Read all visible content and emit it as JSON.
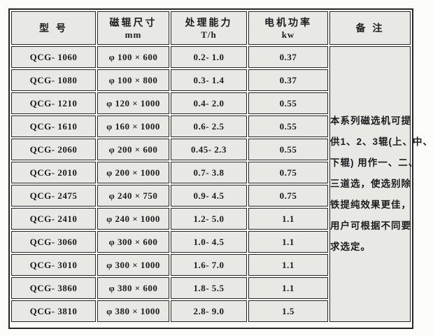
{
  "table": {
    "columns": {
      "model": {
        "label": "型  号",
        "unit": ""
      },
      "size": {
        "label": "磁辊尺寸",
        "unit": "mm"
      },
      "capacity": {
        "label": "处理能力",
        "unit": "T/h"
      },
      "power": {
        "label": "电机功率",
        "unit": "kw"
      },
      "remark": {
        "label": "备  注",
        "unit": ""
      }
    },
    "rows": [
      {
        "model": "QCG- 1060",
        "size": "φ 100 × 600",
        "capacity": "0.2- 1.0",
        "power": "0.37"
      },
      {
        "model": "QCG- 1080",
        "size": "φ 100 × 800",
        "capacity": "0.3- 1.4",
        "power": "0.37"
      },
      {
        "model": "QCG- 1210",
        "size": "φ 120 × 1000",
        "capacity": "0.4- 2.0",
        "power": "0.55"
      },
      {
        "model": "QCG- 1610",
        "size": "φ 160 × 1000",
        "capacity": "0.6- 2.5",
        "power": "0.55"
      },
      {
        "model": "QCG- 2060",
        "size": "φ 200 × 600",
        "capacity": "0.45- 2.3",
        "power": "0.55"
      },
      {
        "model": "QCG- 2010",
        "size": "φ 200 × 1000",
        "capacity": "0.7- 3.8",
        "power": "0.75"
      },
      {
        "model": "QCG- 2475",
        "size": "φ 240 × 750",
        "capacity": "0.9- 4.5",
        "power": "0.75"
      },
      {
        "model": "QCG- 2410",
        "size": "φ 240 × 1000",
        "capacity": "1.2- 5.0",
        "power": "1.1"
      },
      {
        "model": "QCG- 3060",
        "size": "φ 300 × 600",
        "capacity": "1.0- 4.5",
        "power": "1.1"
      },
      {
        "model": "QCG- 3010",
        "size": "φ 300 × 1000",
        "capacity": "1.6- 7.0",
        "power": "1.1"
      },
      {
        "model": "QCG- 3860",
        "size": "φ 380 × 600",
        "capacity": "1.8- 5.5",
        "power": "1.1"
      },
      {
        "model": "QCG- 3810",
        "size": "φ 380 × 1000",
        "capacity": "2.8- 9.0",
        "power": "1.5"
      }
    ],
    "remark_lines": [
      "本系列磁选机可提",
      "供1、2、3辊(上、中、",
      "下辊) 用作一、二、",
      "三道选，使选别除",
      "铁提纯效果更佳，",
      "用户可根据不同要",
      "求选定。"
    ],
    "remark_text": "本系列磁选机可提供1、2、3辊(上、中、下辊) 用作一、二、三道选，使选别除铁提纯效果更佳，用户可根据不同要求选定。",
    "colors": {
      "cell_bg": "#e8e8e5",
      "border": "#262626",
      "text": "#1c1c1c",
      "page_bg": "#fcfcfa"
    }
  }
}
